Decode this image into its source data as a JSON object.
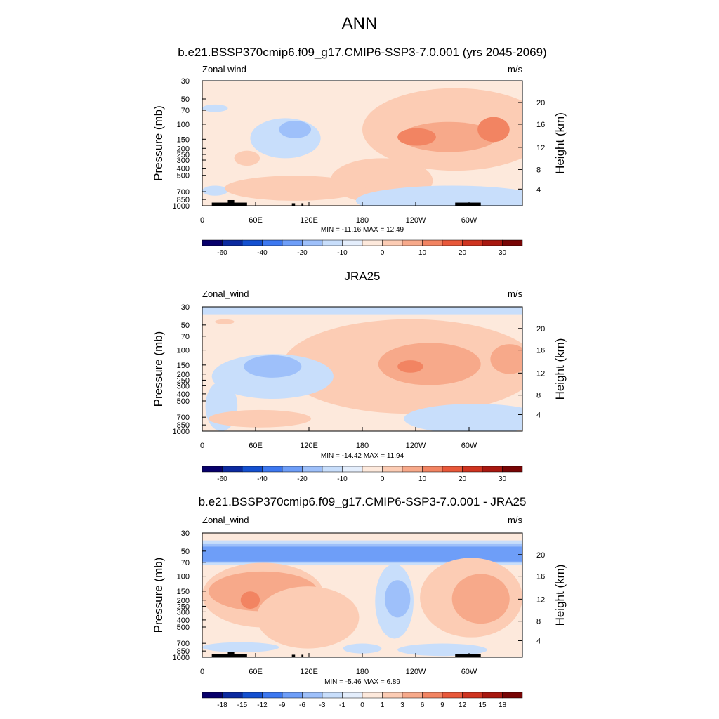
{
  "figure": {
    "title": "ANN"
  },
  "chart_data": [
    {
      "type": "heatmap",
      "title": "b.e21.BSSP370cmip6.f09_g17.CMIP6-SSP3-7.0.001 (yrs 2045-2069)",
      "left_label": "Zonal wind",
      "right_label": "m/s",
      "ylabel": "Pressure (mb)",
      "ylabel_right": "Height (km)",
      "x_tick_labels": [
        "0",
        "60E",
        "120E",
        "180",
        "120W",
        "60W"
      ],
      "y_tick_labels": [
        "30",
        "50",
        "70",
        "100",
        "150",
        "200",
        "250",
        "300",
        "400",
        "500",
        "700",
        "850",
        "1000"
      ],
      "height_tick_labels": [
        "20",
        "16",
        "12",
        "8",
        "4"
      ],
      "stats": "MIN = -11.16  MAX =  12.49",
      "colorbar_labels": [
        "-60",
        "-40",
        "-20",
        "-10",
        "0",
        "10",
        "20",
        "30"
      ],
      "min": -11.16,
      "max": 12.49
    },
    {
      "type": "heatmap",
      "title": "JRA25",
      "left_label": "Zonal_wind",
      "right_label": "m/s",
      "ylabel": "Pressure (mb)",
      "ylabel_right": "Height (km)",
      "x_tick_labels": [
        "0",
        "60E",
        "120E",
        "180",
        "120W",
        "60W"
      ],
      "y_tick_labels": [
        "30",
        "50",
        "70",
        "100",
        "150",
        "200",
        "250",
        "300",
        "400",
        "500",
        "700",
        "850",
        "1000"
      ],
      "height_tick_labels": [
        "20",
        "16",
        "12",
        "8",
        "4"
      ],
      "stats": "MIN = -14.42  MAX =  11.94",
      "colorbar_labels": [
        "-60",
        "-40",
        "-20",
        "-10",
        "0",
        "10",
        "20",
        "30"
      ],
      "min": -14.42,
      "max": 11.94
    },
    {
      "type": "heatmap",
      "title": "b.e21.BSSP370cmip6.f09_g17.CMIP6-SSP3-7.0.001 - JRA25",
      "left_label": "Zonal_wind",
      "right_label": "m/s",
      "ylabel": "Pressure (mb)",
      "ylabel_right": "Height (km)",
      "x_tick_labels": [
        "0",
        "60E",
        "120E",
        "180",
        "120W",
        "60W"
      ],
      "y_tick_labels": [
        "30",
        "50",
        "70",
        "100",
        "150",
        "200",
        "250",
        "300",
        "400",
        "500",
        "700",
        "850",
        "1000"
      ],
      "height_tick_labels": [
        "20",
        "16",
        "12",
        "8",
        "4"
      ],
      "stats": "MIN = -5.46  MAX =  6.89",
      "colorbar_labels": [
        "-18",
        "-15",
        "-12",
        "-9",
        "-6",
        "-3",
        "-1",
        "0",
        "1",
        "3",
        "6",
        "9",
        "12",
        "15",
        "18"
      ],
      "min": -5.46,
      "max": 6.89
    }
  ],
  "colors": {
    "palette": [
      "#08006b",
      "#0c2aa0",
      "#1450d0",
      "#3d78f0",
      "#6e9ef8",
      "#9ec0fa",
      "#c8defb",
      "#e4eefc",
      "#fde9dc",
      "#fcccb4",
      "#f7a98a",
      "#f28462",
      "#e8583a",
      "#cf3420",
      "#a81810",
      "#780505"
    ],
    "land": "#000000"
  }
}
